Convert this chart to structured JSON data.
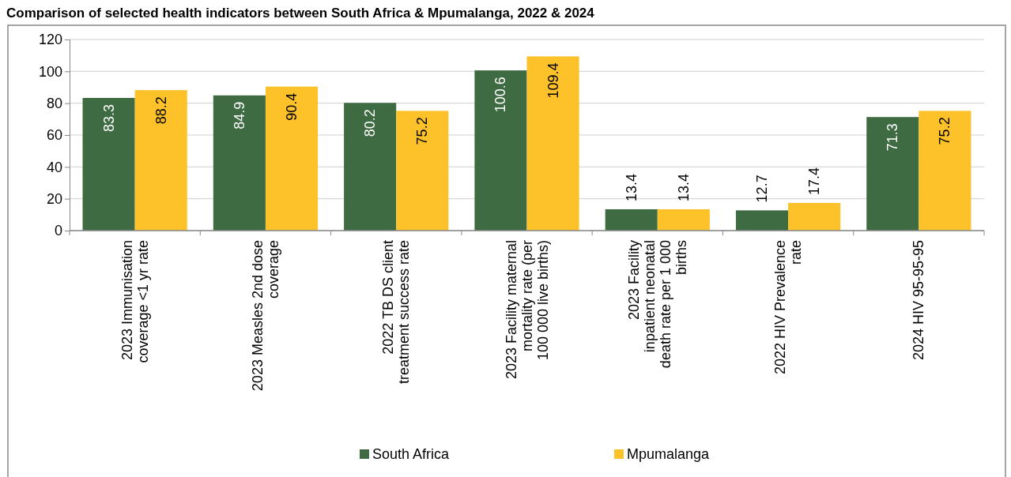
{
  "chart_data": {
    "type": "bar",
    "title": "Comparison of selected health indicators between South Africa & Mpumalanga, 2022 & 2024",
    "categories": [
      "2023 Immunisation coverage <1 yr rate",
      "2023 Measles 2nd dose coverage",
      "2022 TB DS client treatment success rate",
      "2023 Facility maternal mortality rate (per 100 000 live births)",
      "2023 Facility inpatient neonatal death rate per 1 000 births",
      "2022 HIV Prevalence rate",
      "2024 HIV 95-95-95"
    ],
    "series": [
      {
        "name": "South Africa",
        "color": "#3e6b41",
        "values": [
          83.3,
          84.9,
          80.2,
          100.6,
          13.4,
          12.7,
          71.3
        ]
      },
      {
        "name": "Mpumalanga",
        "color": "#fdc12a",
        "values": [
          88.2,
          90.4,
          75.2,
          109.4,
          13.4,
          17.4,
          75.2
        ]
      }
    ],
    "ylim": [
      0,
      120
    ],
    "yticks": [
      0,
      20,
      40,
      60,
      80,
      100,
      120
    ],
    "grid": "y",
    "legend": "bottom",
    "data_labels": true
  }
}
